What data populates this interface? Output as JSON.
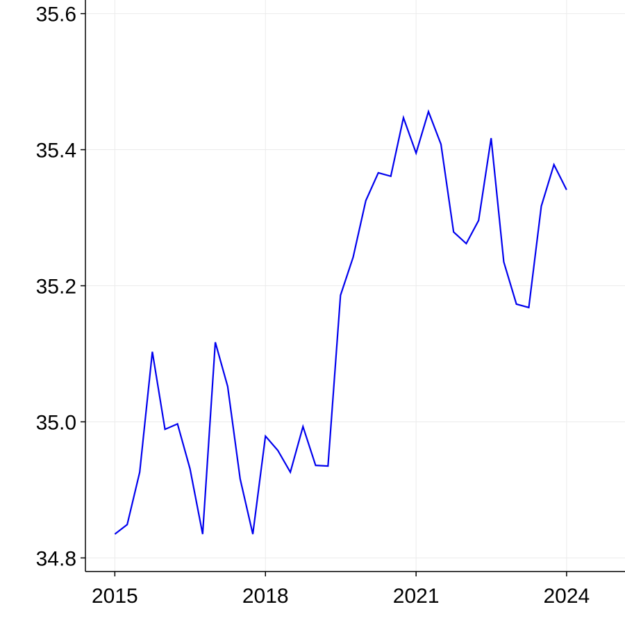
{
  "chart_data": {
    "type": "line",
    "title": "",
    "xlabel": "",
    "ylabel": "",
    "xlim": [
      "2014-06-01",
      "2025-03-01"
    ],
    "ylim": [
      34.78,
      35.62
    ],
    "grid": true,
    "x_ticks": [
      {
        "value": "2015-01-01",
        "label": "2015"
      },
      {
        "value": "2018-01-01",
        "label": "2018"
      },
      {
        "value": "2021-01-01",
        "label": "2021"
      },
      {
        "value": "2024-01-01",
        "label": "2024"
      }
    ],
    "y_ticks": [
      {
        "value": 34.8,
        "label": "34.8"
      },
      {
        "value": 35.0,
        "label": "35.0"
      },
      {
        "value": 35.2,
        "label": "35.2"
      },
      {
        "value": 35.4,
        "label": "35.4"
      },
      {
        "value": 35.6,
        "label": "35.6"
      }
    ],
    "series": [
      {
        "name": "",
        "color": "#0000ee",
        "x": [
          "2015-01-01",
          "2015-04-01",
          "2015-07-01",
          "2015-10-01",
          "2016-01-01",
          "2016-04-01",
          "2016-07-01",
          "2016-10-01",
          "2017-01-01",
          "2017-04-01",
          "2017-07-01",
          "2017-10-01",
          "2018-01-01",
          "2018-04-01",
          "2018-07-01",
          "2018-10-01",
          "2019-01-01",
          "2019-04-01",
          "2019-07-01",
          "2019-10-01",
          "2020-01-01",
          "2020-04-01",
          "2020-07-01",
          "2020-10-01",
          "2021-01-01",
          "2021-04-01",
          "2021-07-01",
          "2021-10-01",
          "2022-01-01",
          "2022-04-01",
          "2022-07-01",
          "2022-10-01",
          "2023-01-01",
          "2023-04-01",
          "2023-07-01",
          "2023-10-01",
          "2024-01-01"
        ],
        "values": [
          34.835,
          34.849,
          34.926,
          35.103,
          34.989,
          34.997,
          34.931,
          34.835,
          35.117,
          35.052,
          34.916,
          34.835,
          34.979,
          34.958,
          34.926,
          34.993,
          34.936,
          34.935,
          35.186,
          35.242,
          35.325,
          35.366,
          35.361,
          35.447,
          35.395,
          35.456,
          35.408,
          35.279,
          35.262,
          35.296,
          35.417,
          35.235,
          35.173,
          35.168,
          35.317,
          35.378,
          35.341
        ]
      }
    ]
  }
}
